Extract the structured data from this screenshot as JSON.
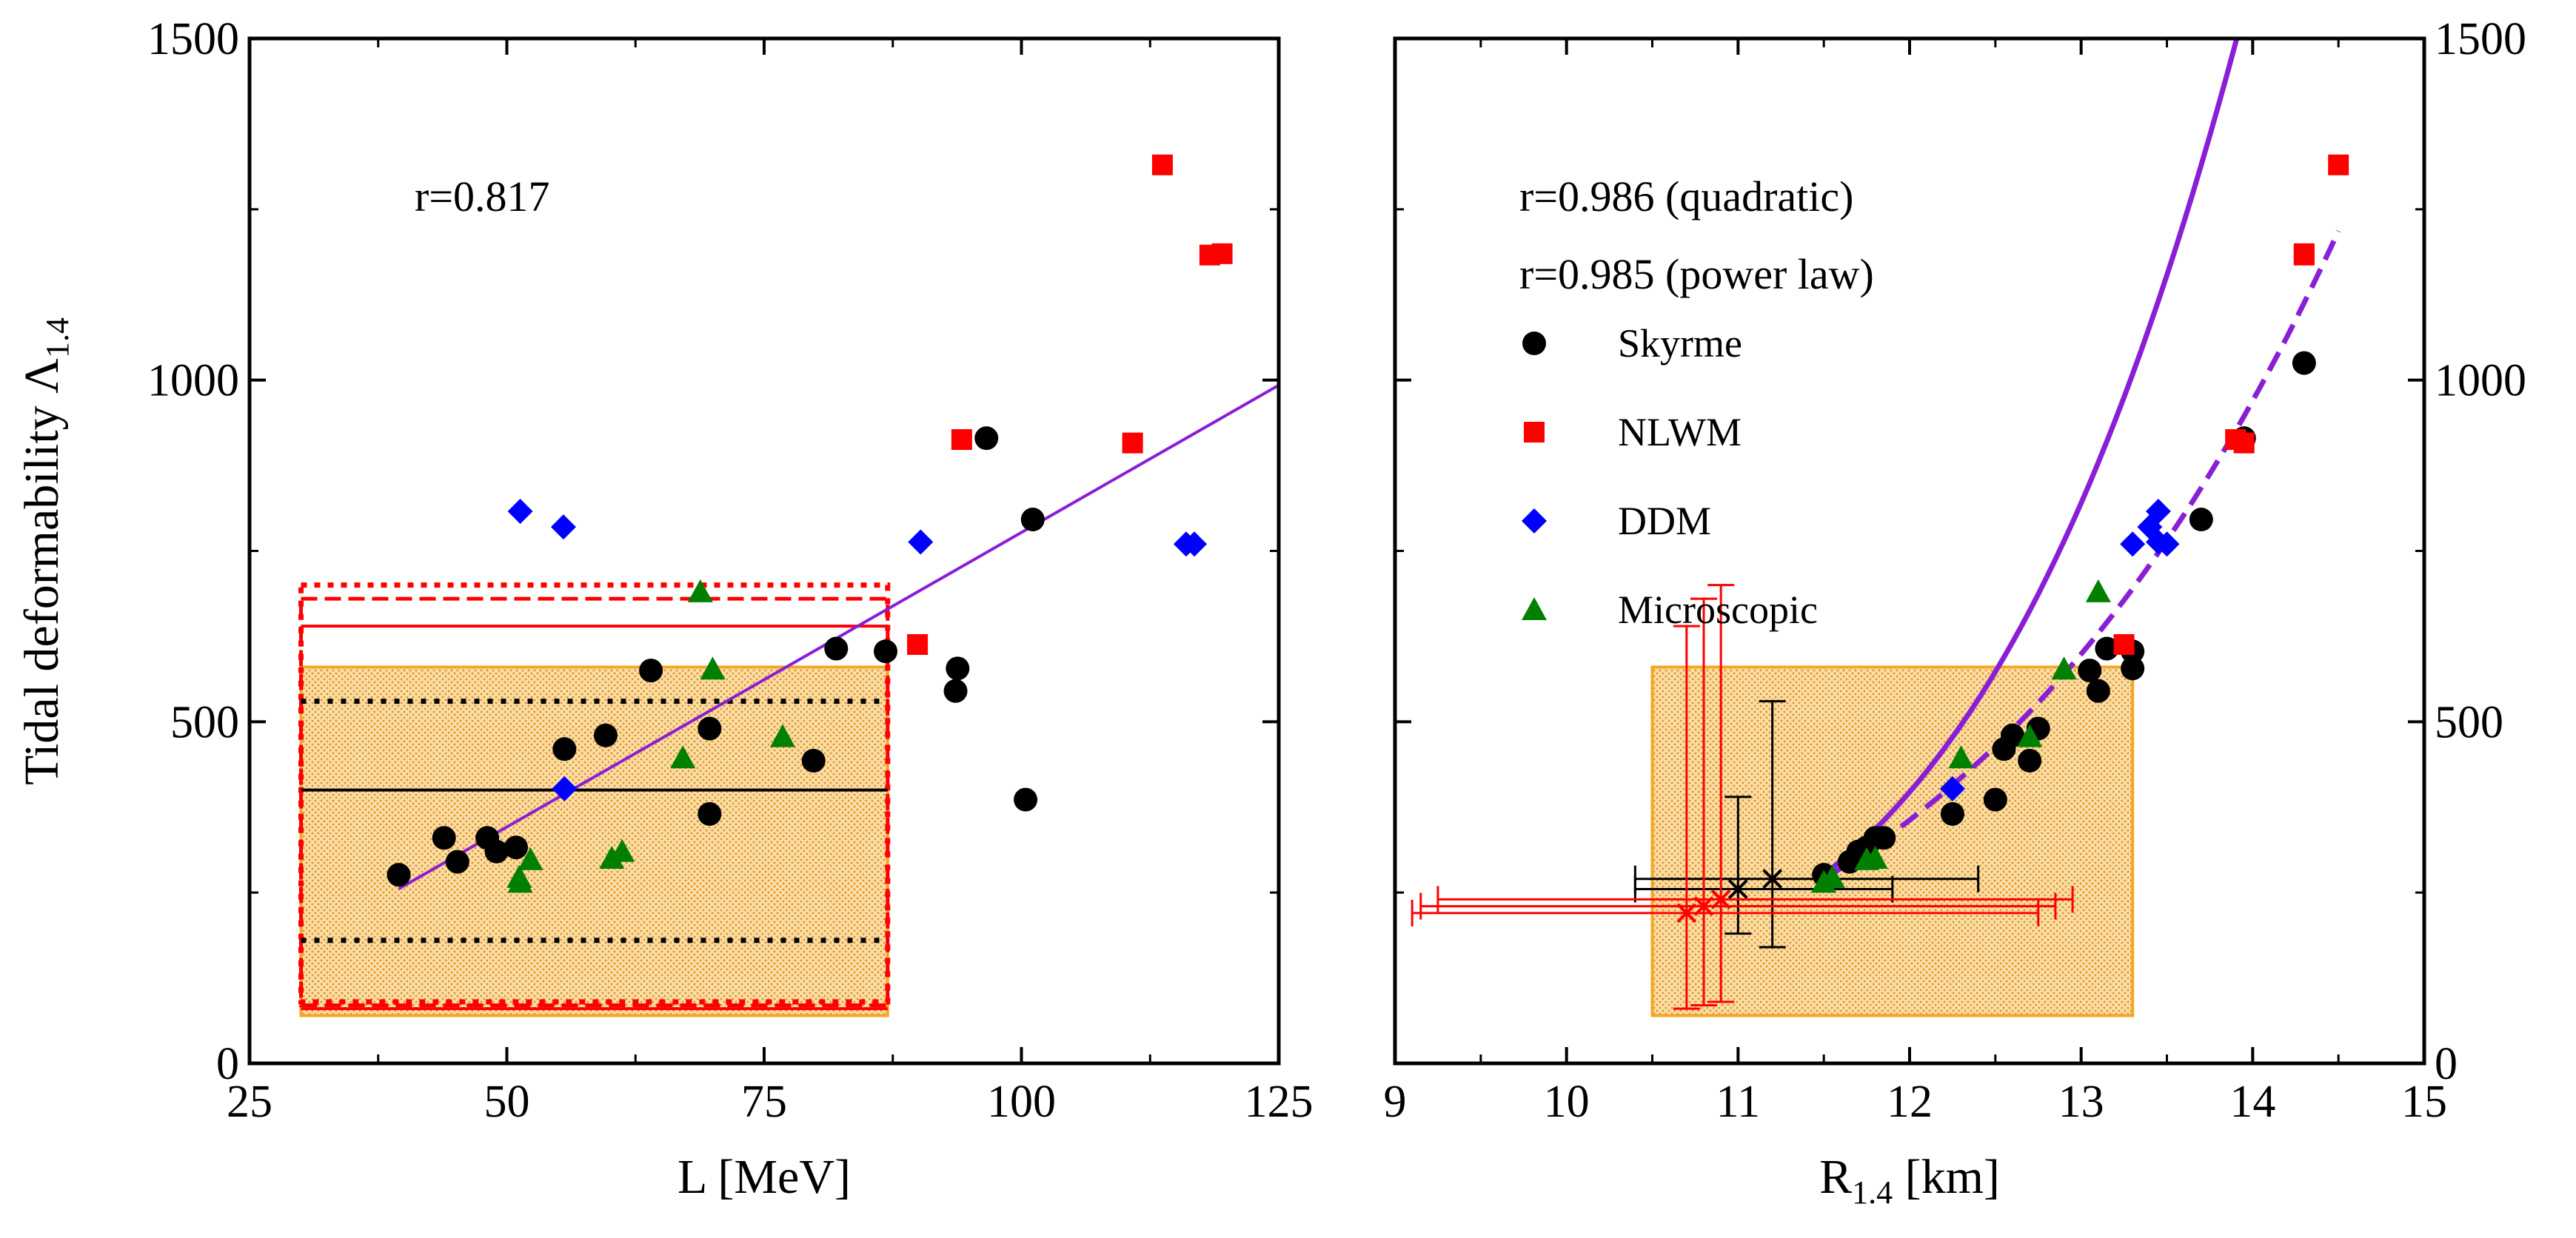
{
  "chart_data": [
    {
      "type": "scatter",
      "id": "left",
      "xlabel": "L [MeV]",
      "ylabel_main": "Tidal deformability Λ",
      "ylabel_sub": "1.4",
      "xlim": [
        25,
        125
      ],
      "ylim": [
        0,
        1500
      ],
      "xticks": [
        "25",
        "50",
        "75",
        "100",
        "125"
      ],
      "yticks": [
        "0",
        "500",
        "1000",
        "1500"
      ],
      "annotation": "r=0.817",
      "fit": {
        "type": "linear",
        "slope": 8.62,
        "intercept": -85,
        "x_range": [
          39.5,
          125
        ]
      },
      "band": {
        "x_range": [
          30,
          87
        ],
        "y_range": [
          70,
          580
        ],
        "color": "#f5a623"
      },
      "hlines": [
        {
          "y": 400,
          "style": "solid",
          "color": "#000000"
        },
        {
          "y": 530,
          "style": "dotted",
          "color": "#000000"
        },
        {
          "y": 180,
          "style": "dotted",
          "color": "#000000"
        },
        {
          "y": 640,
          "style": "solid",
          "color": "#ff0000"
        },
        {
          "y": 80,
          "style": "solid",
          "color": "#ff0000"
        }
      ],
      "red_boxes": [
        {
          "x_range": [
            30,
            87
          ],
          "y_range": [
            85,
            680
          ],
          "style": "dashed"
        },
        {
          "x_range": [
            30,
            87
          ],
          "y_range": [
            90,
            700
          ],
          "style": "dotted"
        }
      ],
      "series": [
        {
          "name": "Skyrme",
          "marker": "circle",
          "color": "#000000",
          "points": [
            [
              39.5,
              276
            ],
            [
              43.9,
              330
            ],
            [
              45.2,
              295
            ],
            [
              48.1,
              330
            ],
            [
              49,
              310
            ],
            [
              50.9,
              316
            ],
            [
              55.6,
              460
            ],
            [
              59.6,
              480
            ],
            [
              64,
              575
            ],
            [
              69.7,
              490
            ],
            [
              69.7,
              365
            ],
            [
              79.8,
              443
            ],
            [
              82,
              607
            ],
            [
              86.8,
              603
            ],
            [
              93.6,
              545
            ],
            [
              93.8,
              578
            ],
            [
              96.6,
              915
            ],
            [
              100.4,
              386
            ],
            [
              101.1,
              796
            ]
          ]
        },
        {
          "name": "NLWM",
          "marker": "square",
          "color": "#ff0000",
          "points": [
            [
              89.9,
              613
            ],
            [
              94.2,
              913
            ],
            [
              110.8,
              908
            ],
            [
              113.7,
              1315
            ],
            [
              118.3,
              1183
            ],
            [
              119.5,
              1185
            ]
          ]
        },
        {
          "name": "DDM",
          "marker": "diamond",
          "color": "#0000ff",
          "points": [
            [
              51.3,
              808
            ],
            [
              55.5,
              785
            ],
            [
              55.6,
              402
            ],
            [
              90.2,
              763
            ],
            [
              116,
              760
            ],
            [
              116.8,
              760
            ]
          ]
        },
        {
          "name": "Microscopic",
          "marker": "triangle",
          "color": "#008000",
          "points": [
            [
              51.2,
              272
            ],
            [
              51.3,
              265
            ],
            [
              52.3,
              298
            ],
            [
              60.2,
              300
            ],
            [
              61.2,
              310
            ],
            [
              67.1,
              447
            ],
            [
              68.8,
              690
            ],
            [
              70,
              577
            ],
            [
              76.8,
              478
            ]
          ]
        }
      ]
    },
    {
      "type": "scatter",
      "id": "right",
      "xlabel_main": "R",
      "xlabel_sub": "1.4",
      "xlabel_unit": " [km]",
      "xlim": [
        9,
        15
      ],
      "ylim": [
        0,
        1500
      ],
      "xticks": [
        "9",
        "10",
        "11",
        "12",
        "13",
        "14",
        "15"
      ],
      "yticks": [
        "0",
        "500",
        "1000",
        "1500"
      ],
      "annotations": [
        "r=0.986 (quadratic)",
        "r=0.985 (power law)"
      ],
      "legend": [
        "Skyrme",
        "NLWM",
        "DDM",
        "Microscopic"
      ],
      "band": {
        "x_range": [
          10.5,
          13.3
        ],
        "y_range": [
          70,
          580
        ],
        "color": "#f5a623"
      },
      "fits": [
        {
          "type": "quadratic",
          "style": "solid",
          "color": "#8a1ed6",
          "x_range": [
            11.5,
            14.5
          ],
          "coef": [
            197.6,
            157.1,
            210.3
          ]
        },
        {
          "type": "power",
          "style": "dashed",
          "color": "#8a1ed6",
          "x_range": [
            11.5,
            14.5
          ],
          "a": 270,
          "b": 6.5
        }
      ],
      "error_bars": [
        {
          "x": 11.2,
          "y": 270,
          "x_err": [
            0.8,
            1.2
          ],
          "y_err": [
            170,
            530
          ],
          "color": "#000000"
        },
        {
          "x": 11.0,
          "y": 255,
          "x_err": [
            10.4,
            11.9
          ],
          "y_err": [
            190,
            390
          ],
          "color": "#000000"
        },
        {
          "x": 10.9,
          "y": 240,
          "x_err": [
            9.25,
            12.95
          ],
          "y_err": [
            90,
            700
          ],
          "color": "#ff0000"
        },
        {
          "x": 10.8,
          "y": 230,
          "x_err": [
            9.15,
            12.85
          ],
          "y_err": [
            85,
            680
          ],
          "color": "#ff0000"
        },
        {
          "x": 10.7,
          "y": 220,
          "x_err": [
            9.1,
            12.75
          ],
          "y_err": [
            80,
            640
          ],
          "color": "#ff0000"
        }
      ],
      "series": [
        {
          "name": "Skyrme",
          "marker": "circle",
          "color": "#000000",
          "points": [
            [
              11.5,
              276
            ],
            [
              11.65,
              295
            ],
            [
              11.7,
              310
            ],
            [
              11.75,
              316
            ],
            [
              11.8,
              330
            ],
            [
              11.85,
              330
            ],
            [
              12.25,
              365
            ],
            [
              12.5,
              386
            ],
            [
              12.55,
              460
            ],
            [
              12.6,
              480
            ],
            [
              12.7,
              443
            ],
            [
              12.75,
              490
            ],
            [
              13.05,
              575
            ],
            [
              13.1,
              545
            ],
            [
              13.15,
              607
            ],
            [
              13.3,
              578
            ],
            [
              13.3,
              603
            ],
            [
              13.7,
              796
            ],
            [
              13.95,
              915
            ],
            [
              14.3,
              1025
            ]
          ]
        },
        {
          "name": "NLWM",
          "marker": "square",
          "color": "#ff0000",
          "points": [
            [
              13.25,
              613
            ],
            [
              13.9,
              913
            ],
            [
              13.95,
              908
            ],
            [
              14.3,
              1183
            ],
            [
              14.3,
              1185
            ],
            [
              14.5,
              1315
            ]
          ]
        },
        {
          "name": "DDM",
          "marker": "diamond",
          "color": "#0000ff",
          "points": [
            [
              12.25,
              402
            ],
            [
              13.3,
              760
            ],
            [
              13.4,
              785
            ],
            [
              13.45,
              808
            ],
            [
              13.45,
              763
            ],
            [
              13.5,
              760
            ]
          ]
        },
        {
          "name": "Microscopic",
          "marker": "triangle",
          "color": "#008000",
          "points": [
            [
              11.5,
              265
            ],
            [
              11.55,
              272
            ],
            [
              11.75,
              298
            ],
            [
              11.8,
              300
            ],
            [
              12.3,
              447
            ],
            [
              12.7,
              478
            ],
            [
              12.9,
              577
            ],
            [
              13.1,
              690
            ]
          ]
        }
      ]
    }
  ]
}
